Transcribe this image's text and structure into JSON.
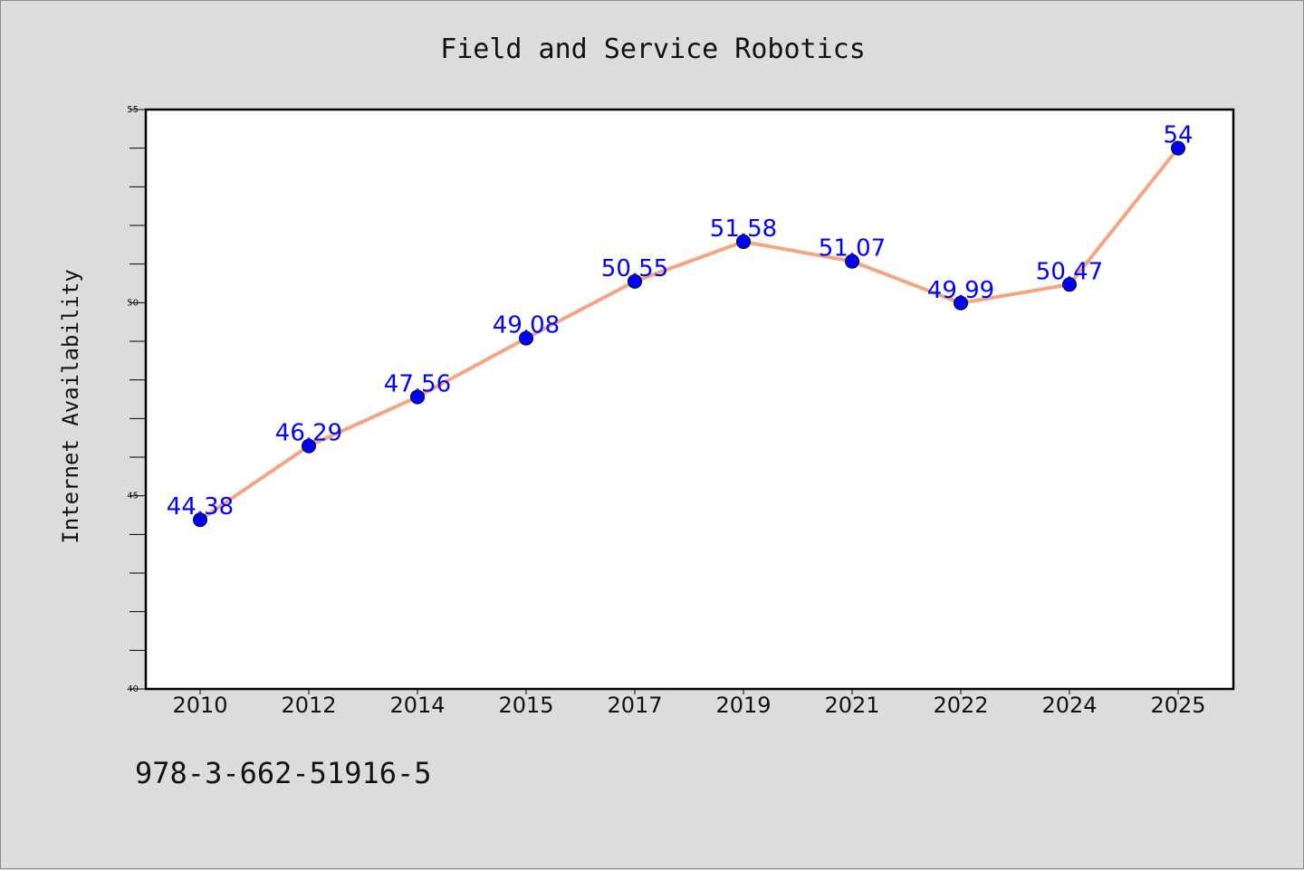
{
  "chart_data": {
    "type": "line",
    "title": "Field and Service Robotics",
    "xlabel": "",
    "ylabel": "Internet Availability",
    "categories": [
      "2010",
      "2012",
      "2014",
      "2015",
      "2017",
      "2019",
      "2021",
      "2022",
      "2024",
      "2025"
    ],
    "values": [
      44.38,
      46.29,
      47.56,
      49.08,
      50.55,
      51.58,
      51.07,
      49.99,
      50.47,
      54
    ],
    "data_labels": [
      "44.38",
      "46.29",
      "47.56",
      "49.08",
      "50.55",
      "51.58",
      "51.07",
      "49.99",
      "50.47",
      "54"
    ],
    "ylim": [
      40,
      55
    ],
    "yticks": [
      40,
      45,
      50,
      55
    ],
    "grid": false,
    "legend": "none",
    "line_color": "#f4a582",
    "marker_color": "#0000ff",
    "label_color": "#0000ff"
  },
  "footer": {
    "isbn": "978-3-662-51916-5"
  }
}
